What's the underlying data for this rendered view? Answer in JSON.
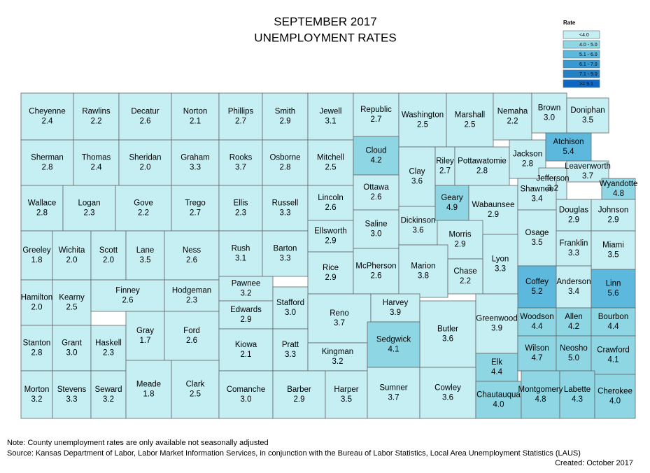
{
  "title": [
    "SEPTEMBER 2017",
    "UNEMPLOYMENT RATES"
  ],
  "legend": {
    "title": "Rate",
    "items": [
      {
        "label": "<4.0",
        "color": "#c6eff4"
      },
      {
        "label": "4.0 - 5.0",
        "color": "#8ed6e3"
      },
      {
        "label": "5.1 - 6.0",
        "color": "#5cb8dc"
      },
      {
        "label": "6.1 - 7.0",
        "color": "#3799cf"
      },
      {
        "label": "7.1 - 9.0",
        "color": "#2380c4"
      },
      {
        "label": ">= 9.1",
        "color": "#0d66c2"
      }
    ]
  },
  "counties": [
    {
      "name": "Cheyenne",
      "rate": "2.4",
      "color": "#c6eff4"
    },
    {
      "name": "Rawlins",
      "rate": "2.2",
      "color": "#c6eff4"
    },
    {
      "name": "Decatur",
      "rate": "2.6",
      "color": "#c6eff4"
    },
    {
      "name": "Norton",
      "rate": "2.1",
      "color": "#c6eff4"
    },
    {
      "name": "Phillips",
      "rate": "2.7",
      "color": "#c6eff4"
    },
    {
      "name": "Smith",
      "rate": "2.9",
      "color": "#c6eff4"
    },
    {
      "name": "Jewell",
      "rate": "3.1",
      "color": "#c6eff4"
    },
    {
      "name": "Republic",
      "rate": "2.7",
      "color": "#c6eff4"
    },
    {
      "name": "Washington",
      "rate": "2.5",
      "color": "#c6eff4"
    },
    {
      "name": "Marshall",
      "rate": "2.5",
      "color": "#c6eff4"
    },
    {
      "name": "Nemaha",
      "rate": "2.2",
      "color": "#c6eff4"
    },
    {
      "name": "Brown",
      "rate": "3.0",
      "color": "#c6eff4"
    },
    {
      "name": "Doniphan",
      "rate": "3.5",
      "color": "#c6eff4"
    },
    {
      "name": "Sherman",
      "rate": "2.8",
      "color": "#c6eff4"
    },
    {
      "name": "Thomas",
      "rate": "2.4",
      "color": "#c6eff4"
    },
    {
      "name": "Sheridan",
      "rate": "2.0",
      "color": "#c6eff4"
    },
    {
      "name": "Graham",
      "rate": "3.3",
      "color": "#c6eff4"
    },
    {
      "name": "Rooks",
      "rate": "3.7",
      "color": "#c6eff4"
    },
    {
      "name": "Osborne",
      "rate": "2.8",
      "color": "#c6eff4"
    },
    {
      "name": "Mitchell",
      "rate": "2.5",
      "color": "#c6eff4"
    },
    {
      "name": "Cloud",
      "rate": "4.2",
      "color": "#8ed6e3"
    },
    {
      "name": "Clay",
      "rate": "3.6",
      "color": "#c6eff4"
    },
    {
      "name": "Riley",
      "rate": "2.7",
      "color": "#c6eff4"
    },
    {
      "name": "Pottawatomie",
      "rate": "2.8",
      "color": "#c6eff4"
    },
    {
      "name": "Jackson",
      "rate": "2.8",
      "color": "#c6eff4"
    },
    {
      "name": "Atchison",
      "rate": "5.4",
      "color": "#5cb8dc"
    },
    {
      "name": "Leavenworth",
      "rate": "3.7",
      "color": "#c6eff4"
    },
    {
      "name": "Jefferson",
      "rate": "3.2",
      "color": "#c6eff4"
    },
    {
      "name": "Wallace",
      "rate": "2.8",
      "color": "#c6eff4"
    },
    {
      "name": "Logan",
      "rate": "2.3",
      "color": "#c6eff4"
    },
    {
      "name": "Gove",
      "rate": "2.2",
      "color": "#c6eff4"
    },
    {
      "name": "Trego",
      "rate": "2.7",
      "color": "#c6eff4"
    },
    {
      "name": "Ellis",
      "rate": "2.3",
      "color": "#c6eff4"
    },
    {
      "name": "Russell",
      "rate": "3.3",
      "color": "#c6eff4"
    },
    {
      "name": "Lincoln",
      "rate": "2.6",
      "color": "#c6eff4"
    },
    {
      "name": "Ottawa",
      "rate": "2.6",
      "color": "#c6eff4"
    },
    {
      "name": "Dickinson",
      "rate": "3.6",
      "color": "#c6eff4"
    },
    {
      "name": "Geary",
      "rate": "4.9",
      "color": "#8ed6e3"
    },
    {
      "name": "Wabaunsee",
      "rate": "2.9",
      "color": "#c6eff4"
    },
    {
      "name": "Shawnee",
      "rate": "3.4",
      "color": "#c6eff4"
    },
    {
      "name": "Douglas",
      "rate": "2.9",
      "color": "#c6eff4"
    },
    {
      "name": "Wyandotte",
      "rate": "4.8",
      "color": "#8ed6e3"
    },
    {
      "name": "Johnson",
      "rate": "2.9",
      "color": "#c6eff4"
    },
    {
      "name": "Greeley",
      "rate": "1.8",
      "color": "#c6eff4"
    },
    {
      "name": "Wichita",
      "rate": "2.0",
      "color": "#c6eff4"
    },
    {
      "name": "Scott",
      "rate": "2.0",
      "color": "#c6eff4"
    },
    {
      "name": "Lane",
      "rate": "3.5",
      "color": "#c6eff4"
    },
    {
      "name": "Ness",
      "rate": "2.6",
      "color": "#c6eff4"
    },
    {
      "name": "Rush",
      "rate": "3.1",
      "color": "#c6eff4"
    },
    {
      "name": "Barton",
      "rate": "3.3",
      "color": "#c6eff4"
    },
    {
      "name": "Ellsworth",
      "rate": "2.9",
      "color": "#c6eff4"
    },
    {
      "name": "Saline",
      "rate": "3.0",
      "color": "#c6eff4"
    },
    {
      "name": "Morris",
      "rate": "2.9",
      "color": "#c6eff4"
    },
    {
      "name": "Osage",
      "rate": "3.5",
      "color": "#c6eff4"
    },
    {
      "name": "Franklin",
      "rate": "3.3",
      "color": "#c6eff4"
    },
    {
      "name": "Miami",
      "rate": "3.5",
      "color": "#c6eff4"
    },
    {
      "name": "Lyon",
      "rate": "3.3",
      "color": "#c6eff4"
    },
    {
      "name": "Hamilton",
      "rate": "2.0",
      "color": "#c6eff4"
    },
    {
      "name": "Kearny",
      "rate": "2.5",
      "color": "#c6eff4"
    },
    {
      "name": "Finney",
      "rate": "2.6",
      "color": "#c6eff4"
    },
    {
      "name": "Hodgeman",
      "rate": "2.3",
      "color": "#c6eff4"
    },
    {
      "name": "Pawnee",
      "rate": "3.2",
      "color": "#c6eff4"
    },
    {
      "name": "Rice",
      "rate": "2.9",
      "color": "#c6eff4"
    },
    {
      "name": "McPherson",
      "rate": "2.6",
      "color": "#c6eff4"
    },
    {
      "name": "Marion",
      "rate": "3.8",
      "color": "#c6eff4"
    },
    {
      "name": "Chase",
      "rate": "2.2",
      "color": "#c6eff4"
    },
    {
      "name": "Coffey",
      "rate": "5.2",
      "color": "#5cb8dc"
    },
    {
      "name": "Anderson",
      "rate": "3.4",
      "color": "#c6eff4"
    },
    {
      "name": "Linn",
      "rate": "5.6",
      "color": "#5cb8dc"
    },
    {
      "name": "Stanton",
      "rate": "2.8",
      "color": "#c6eff4"
    },
    {
      "name": "Grant",
      "rate": "3.0",
      "color": "#c6eff4"
    },
    {
      "name": "Haskell",
      "rate": "2.3",
      "color": "#c6eff4"
    },
    {
      "name": "Gray",
      "rate": "1.7",
      "color": "#c6eff4"
    },
    {
      "name": "Ford",
      "rate": "2.6",
      "color": "#c6eff4"
    },
    {
      "name": "Edwards",
      "rate": "2.9",
      "color": "#c6eff4"
    },
    {
      "name": "Stafford",
      "rate": "3.0",
      "color": "#c6eff4"
    },
    {
      "name": "Reno",
      "rate": "3.7",
      "color": "#c6eff4"
    },
    {
      "name": "Harvey",
      "rate": "3.9",
      "color": "#c6eff4"
    },
    {
      "name": "Butler",
      "rate": "3.6",
      "color": "#c6eff4"
    },
    {
      "name": "Greenwood",
      "rate": "3.9",
      "color": "#c6eff4"
    },
    {
      "name": "Woodson",
      "rate": "4.4",
      "color": "#8ed6e3"
    },
    {
      "name": "Allen",
      "rate": "4.2",
      "color": "#8ed6e3"
    },
    {
      "name": "Bourbon",
      "rate": "4.4",
      "color": "#8ed6e3"
    },
    {
      "name": "Kiowa",
      "rate": "2.1",
      "color": "#c6eff4"
    },
    {
      "name": "Pratt",
      "rate": "3.3",
      "color": "#c6eff4"
    },
    {
      "name": "Kingman",
      "rate": "3.2",
      "color": "#c6eff4"
    },
    {
      "name": "Sedgwick",
      "rate": "4.1",
      "color": "#8ed6e3"
    },
    {
      "name": "Elk",
      "rate": "4.4",
      "color": "#8ed6e3"
    },
    {
      "name": "Wilson",
      "rate": "4.7",
      "color": "#8ed6e3"
    },
    {
      "name": "Neosho",
      "rate": "5.0",
      "color": "#8ed6e3"
    },
    {
      "name": "Crawford",
      "rate": "4.1",
      "color": "#8ed6e3"
    },
    {
      "name": "Morton",
      "rate": "3.2",
      "color": "#c6eff4"
    },
    {
      "name": "Stevens",
      "rate": "3.3",
      "color": "#c6eff4"
    },
    {
      "name": "Seward",
      "rate": "3.2",
      "color": "#c6eff4"
    },
    {
      "name": "Meade",
      "rate": "1.8",
      "color": "#c6eff4"
    },
    {
      "name": "Clark",
      "rate": "2.5",
      "color": "#c6eff4"
    },
    {
      "name": "Comanche",
      "rate": "3.0",
      "color": "#c6eff4"
    },
    {
      "name": "Barber",
      "rate": "2.9",
      "color": "#c6eff4"
    },
    {
      "name": "Harper",
      "rate": "3.5",
      "color": "#c6eff4"
    },
    {
      "name": "Sumner",
      "rate": "3.7",
      "color": "#c6eff4"
    },
    {
      "name": "Cowley",
      "rate": "3.6",
      "color": "#c6eff4"
    },
    {
      "name": "Chautauqua",
      "rate": "4.0",
      "color": "#8ed6e3"
    },
    {
      "name": "Montgomery",
      "rate": "4.8",
      "color": "#8ed6e3"
    },
    {
      "name": "Labette",
      "rate": "4.3",
      "color": "#8ed6e3"
    },
    {
      "name": "Cherokee",
      "rate": "4.0",
      "color": "#8ed6e3"
    }
  ],
  "notes": [
    "Note: County unemployment rates are only available not seasonally adjusted",
    "Source: Kansas Department of Labor, Labor Market Information Services, in conjunction with the Bureau of Labor Statistics, Local Area Unemployment Statistics (LAUS)"
  ],
  "created": "Created:  October 2017"
}
